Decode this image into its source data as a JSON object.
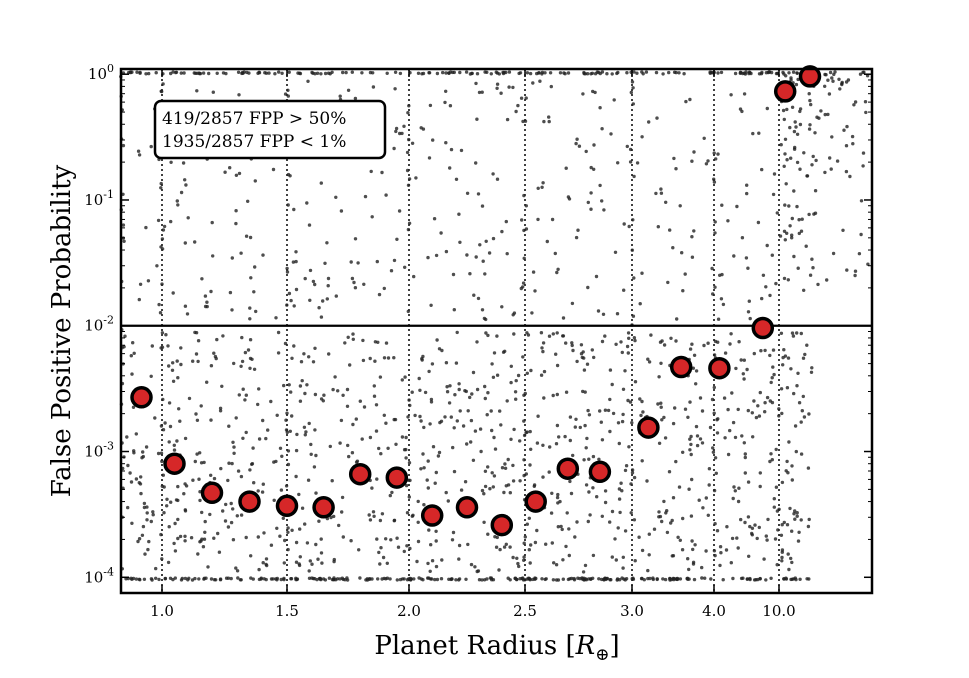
{
  "chart_data": {
    "type": "scatter",
    "xlabel": "Planet Radius",
    "xlabel_unit_symbol": "R",
    "xlabel_unit_subscript": "⊕",
    "ylabel": "False Positive Probability",
    "yscale": "log",
    "ylim": [
      7.5e-05,
      1.1
    ],
    "xscale": "piecewise radius bins (13 equal-width segments)",
    "x_ticks": [
      {
        "position": 1.0,
        "label": "1.0"
      },
      {
        "position": 1.5,
        "label": "1.5"
      },
      {
        "position": 2.0,
        "label": "2.0"
      },
      {
        "position": 2.5,
        "label": "2.5"
      },
      {
        "position": 3.0,
        "label": "3.0"
      },
      {
        "position": 4.0,
        "label": "4.0"
      },
      {
        "position": 10.0,
        "label": "10.0"
      }
    ],
    "y_ticks": [
      {
        "value": 1,
        "base": "10",
        "exp": "0"
      },
      {
        "value": 0.1,
        "base": "10",
        "exp": "-1"
      },
      {
        "value": 0.01,
        "base": "10",
        "exp": "-2"
      },
      {
        "value": 0.001,
        "base": "10",
        "exp": "-3"
      },
      {
        "value": 0.0001,
        "base": "10",
        "exp": "-4"
      }
    ],
    "reference_line": {
      "y": 0.01
    },
    "annotation_lines": [
      "419/2857 FPP > 50%",
      "1935/2857 FPP < 1%"
    ],
    "series": [
      {
        "type": "scatter-median",
        "x": [
          0.9,
          1.05,
          1.2,
          1.35,
          1.5,
          1.65,
          1.8,
          1.95,
          2.1,
          2.25,
          2.4,
          2.55,
          2.7,
          2.85,
          3.2,
          3.6,
          4.5,
          8.5,
          12.0,
          20.0
        ],
        "y": [
          0.0027,
          0.0008,
          0.00047,
          0.0004,
          0.00037,
          0.00036,
          0.00066,
          0.00062,
          0.00031,
          0.00036,
          0.00026,
          0.0004,
          0.00073,
          0.00069,
          0.00155,
          0.0047,
          0.0046,
          0.0096,
          0.73,
          0.96
        ],
        "color": "#d62728"
      },
      {
        "type": "scatter-individual",
        "count": 2857,
        "color": "#333333"
      }
    ]
  }
}
